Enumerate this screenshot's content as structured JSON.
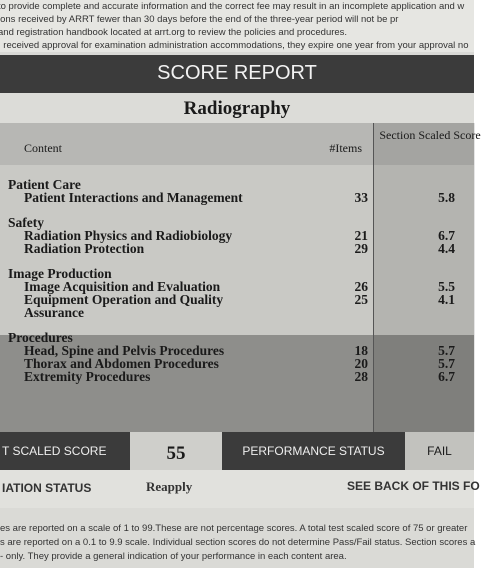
{
  "header": {
    "lines": [
      "to provide complete and accurate information and the correct fee may result in an incomplete application and w",
      "ions received by ARRT fewer than 30 days before the end of the three-year period will not be pr",
      "and registration handbook located at arrt.org to review the policies and procedures.",
      "I received approval for examination administration accommodations, they expire one year from your approval no"
    ]
  },
  "report": {
    "title": "SCORE REPORT",
    "subtitle": "Radiography",
    "columns": [
      "Content",
      "#Items",
      "Section Scaled Score"
    ],
    "sections": [
      {
        "name": "Patient Care",
        "rows": [
          [
            "Patient Interactions and Management",
            33,
            5.8
          ]
        ]
      },
      {
        "name": "Safety",
        "rows": [
          [
            "Radiation Physics and Radiobiology",
            21,
            6.7
          ],
          [
            "Radiation Protection",
            29,
            4.4
          ]
        ]
      },
      {
        "name": "Image Production",
        "rows": [
          [
            "Image Acquisition and Evaluation",
            26,
            5.5
          ],
          [
            "Equipment Operation and Quality Assurance",
            25,
            4.1
          ]
        ]
      },
      {
        "name": "Procedures",
        "rows": [
          [
            "Head, Spine and Pelvis Procedures",
            18,
            5.7
          ],
          [
            "Thorax and Abdomen Procedures",
            20,
            5.7
          ],
          [
            "Extremity Procedures",
            28,
            6.7
          ]
        ]
      }
    ]
  },
  "summary": {
    "score_label": "T SCALED SCORE",
    "score": 55,
    "performance_label": "PERFORMANCE STATUS",
    "performance": "FAIL",
    "status_label": "IATION STATUS",
    "status": "Reapply",
    "note": "SEE BACK OF THIS FO"
  },
  "footer": {
    "lines": [
      "es are reported on a scale of 1 to 99.These are not percentage scores. A total test scaled score of 75 or greater",
      "s are reported on a 0.1 to 9.9 scale. Individual section scores do not determine Pass/Fail status. Section scores a",
      "- only. They provide a general indication of your performance in each content area."
    ]
  }
}
